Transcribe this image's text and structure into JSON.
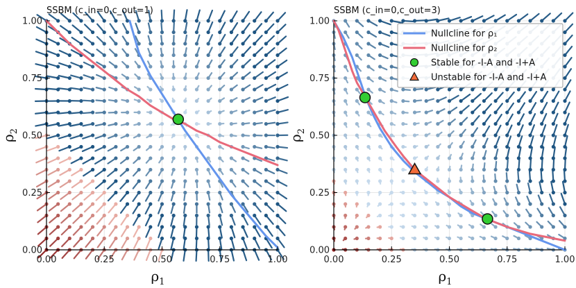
{
  "chart_data": [
    {
      "type": "line",
      "title": "SSBM (c_in=0,c_out=1)",
      "xlabel": "ρ",
      "xlabel_sub": "1",
      "ylabel": "ρ",
      "ylabel_sub": "2",
      "xlim": [
        0,
        1
      ],
      "ylim": [
        0,
        1
      ],
      "xticks": [
        "0.00",
        "0.25",
        "0.50",
        "0.75",
        "1.00"
      ],
      "yticks": [
        "0.00",
        "0.25",
        "0.50",
        "0.75",
        "1.00"
      ],
      "grid": true,
      "series": [
        {
          "name": "Nullcline for ρ₁",
          "color": "#6495ED",
          "x": [
            0.36,
            0.4,
            0.45,
            0.5,
            0.55,
            0.6,
            0.65,
            0.7,
            0.75,
            0.8,
            0.85,
            0.9,
            0.95,
            1.0
          ],
          "y": [
            1.0,
            0.86,
            0.76,
            0.68,
            0.6,
            0.52,
            0.45,
            0.38,
            0.31,
            0.24,
            0.18,
            0.12,
            0.06,
            0.01
          ]
        },
        {
          "name": "Nullcline for ρ₂",
          "color": "#E8697A",
          "x": [
            0.0,
            0.05,
            0.1,
            0.15,
            0.2,
            0.25,
            0.3,
            0.35,
            0.4,
            0.45,
            0.5,
            0.55,
            0.6,
            0.65,
            0.7,
            0.75,
            0.8,
            0.85,
            0.9,
            0.95,
            1.0
          ],
          "y": [
            1.0,
            0.95,
            0.9,
            0.86,
            0.82,
            0.78,
            0.74,
            0.7,
            0.67,
            0.63,
            0.6,
            0.57,
            0.55,
            0.52,
            0.5,
            0.47,
            0.45,
            0.43,
            0.41,
            0.39,
            0.37
          ]
        }
      ],
      "points": [
        {
          "label": "Stable for -I-A and -I+A",
          "x": 0.57,
          "y": 0.57,
          "marker": "circle",
          "color": "#32CD32"
        }
      ],
      "legend": null
    },
    {
      "type": "line",
      "title": "SSBM (c_in=0,c_out=3)",
      "xlabel": "ρ",
      "xlabel_sub": "1",
      "ylabel": "ρ",
      "ylabel_sub": "2",
      "xlim": [
        0,
        1
      ],
      "ylim": [
        0,
        1
      ],
      "xticks": [
        "0.00",
        "0.25",
        "0.50",
        "0.75",
        "1.00"
      ],
      "yticks": [
        "0.00",
        "0.25",
        "0.50",
        "0.75",
        "1.00"
      ],
      "grid": true,
      "series": [
        {
          "name": "Nullcline for ρ₁",
          "color": "#6495ED",
          "x": [
            0.0,
            0.04,
            0.08,
            0.1,
            0.12,
            0.14,
            0.17,
            0.2,
            0.25,
            0.3,
            0.35,
            0.4,
            0.45,
            0.5,
            0.55,
            0.6,
            0.66,
            0.75,
            0.85,
            0.95,
            1.0
          ],
          "y": [
            1.0,
            0.93,
            0.84,
            0.78,
            0.72,
            0.66,
            0.59,
            0.53,
            0.45,
            0.39,
            0.34,
            0.3,
            0.26,
            0.23,
            0.19,
            0.16,
            0.135,
            0.1,
            0.06,
            0.02,
            0.0
          ]
        },
        {
          "name": "Nullcline for ρ₂",
          "color": "#E8697A",
          "x": [
            0.0,
            0.02,
            0.04,
            0.06,
            0.08,
            0.1,
            0.14,
            0.18,
            0.22,
            0.27,
            0.3,
            0.35,
            0.4,
            0.45,
            0.5,
            0.55,
            0.6,
            0.66,
            0.75,
            0.85,
            0.95,
            1.0
          ],
          "y": [
            1.0,
            0.96,
            0.9,
            0.84,
            0.78,
            0.73,
            0.66,
            0.59,
            0.52,
            0.45,
            0.41,
            0.35,
            0.31,
            0.27,
            0.23,
            0.2,
            0.17,
            0.135,
            0.1,
            0.07,
            0.05,
            0.04
          ]
        }
      ],
      "points": [
        {
          "label": "Stable for -I-A and -I+A",
          "x": 0.135,
          "y": 0.665,
          "marker": "circle",
          "color": "#32CD32"
        },
        {
          "label": "Stable for -I-A and -I+A",
          "x": 0.665,
          "y": 0.135,
          "marker": "circle",
          "color": "#32CD32"
        },
        {
          "label": "Unstable for -I-A and -I+A",
          "x": 0.35,
          "y": 0.35,
          "marker": "triangle",
          "color": "#F26B3A"
        }
      ],
      "legend": {
        "position": "top-right",
        "entries": [
          {
            "label": "Nullcline for ρ₁",
            "kind": "line",
            "color": "#6495ED"
          },
          {
            "label": "Nullcline for ρ₂",
            "kind": "line",
            "color": "#E8697A"
          },
          {
            "label": "Stable for -I-A and -I+A",
            "kind": "circle",
            "color": "#32CD32"
          },
          {
            "label": "Unstable for -I-A and -I+A",
            "kind": "triangle",
            "color": "#F26B3A"
          }
        ]
      }
    }
  ]
}
